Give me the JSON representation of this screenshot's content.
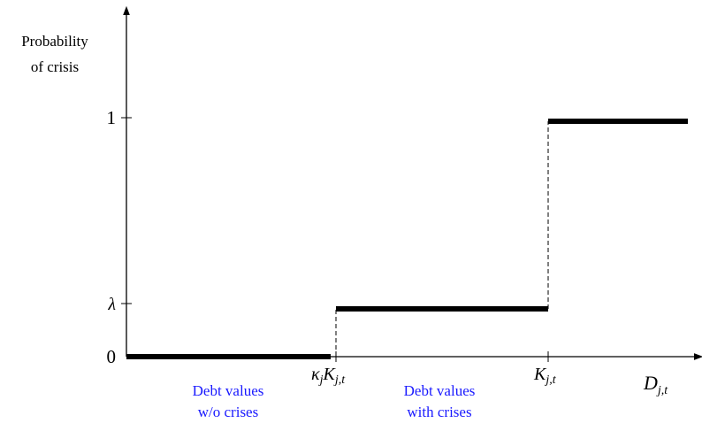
{
  "y_axis": {
    "label_lines": [
      "Probability",
      "of crisis"
    ],
    "ticks": [
      "1",
      "λ",
      "0"
    ]
  },
  "x_axis": {
    "label": {
      "main": "D",
      "sub": "j,t"
    },
    "ticks": [
      [
        {
          "main": "κ",
          "sub": "j"
        },
        {
          "main": "K",
          "sub": "j,t"
        }
      ],
      [
        {
          "main": "K",
          "sub": "j,t"
        }
      ]
    ]
  },
  "regions": [
    {
      "lines": [
        "Debt values",
        "w/o crises"
      ]
    },
    {
      "lines": [
        "Debt values",
        "with crises"
      ]
    }
  ]
}
